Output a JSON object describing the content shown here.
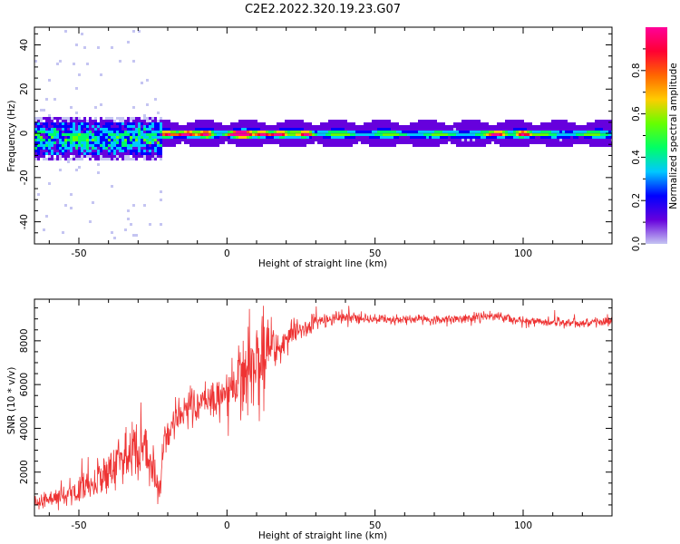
{
  "title": "C2E2.2022.320.19.23.G07",
  "chart_data": [
    {
      "type": "heatmap",
      "title": "C2E2.2022.320.19.23.G07",
      "xlabel": "Height of straight line (km)",
      "ylabel": "Frequency (Hz)",
      "xlim": [
        -65,
        130
      ],
      "ylim": [
        -50,
        48
      ],
      "xticks": [
        -50,
        0,
        50,
        100
      ],
      "yticks": [
        -40,
        -20,
        0,
        20,
        40
      ],
      "xtick_labels": [
        "-50",
        "0",
        "50",
        "100"
      ],
      "ytick_labels": [
        "-40",
        "-20",
        "0",
        "20",
        "40"
      ],
      "description_of_signal": "narrow band near 0 Hz; broad noisy spread (about -10 to 5 Hz) below -22 km; strong peaks near -20, -14, -7, 3, 27, 91, 100 km",
      "band": {
        "noisy_region": {
          "x_from": -65,
          "x_to": -22,
          "freq_low": -10,
          "freq_high": 5
        },
        "hotspots_x": [
          -20,
          -14,
          -7,
          3,
          6,
          12,
          17,
          27,
          91,
          100
        ]
      }
    },
    {
      "type": "line",
      "xlabel": "Height of straight line (km)",
      "ylabel": "SNR (10 * v/v)",
      "xlim": [
        -65,
        130
      ],
      "ylim": [
        0,
        9900
      ],
      "xticks": [
        -50,
        0,
        50,
        100
      ],
      "yticks": [
        2000,
        4000,
        6000,
        8000
      ],
      "xtick_labels": [
        "-50",
        "0",
        "50",
        "100"
      ],
      "ytick_labels": [
        "2000",
        "4000",
        "6000",
        "8000"
      ],
      "series": [
        {
          "name": "SNR",
          "color": "#ee3333",
          "x": [
            -65,
            -55,
            -45,
            -35,
            -28,
            -23,
            -21,
            -18,
            -12,
            -5,
            0,
            5,
            8,
            10,
            12,
            15,
            18,
            22,
            30,
            40,
            50,
            60,
            70,
            80,
            90,
            100,
            110,
            120,
            130
          ],
          "y": [
            600,
            900,
            1500,
            2600,
            3200,
            1200,
            3200,
            4300,
            4900,
            5400,
            5700,
            6200,
            7000,
            6000,
            7200,
            7700,
            7700,
            8300,
            8900,
            9100,
            9000,
            9000,
            8950,
            9000,
            9150,
            8900,
            8850,
            8850,
            8900
          ],
          "noise_amplitude": [
            300,
            400,
            700,
            1100,
            1300,
            600,
            700,
            700,
            800,
            900,
            1000,
            1300,
            2300,
            2600,
            2200,
            1100,
            700,
            500,
            300,
            220,
            200,
            200,
            200,
            200,
            200,
            200,
            200,
            200,
            200
          ]
        }
      ]
    }
  ],
  "colorbar": {
    "label": "Normalized spectral amplitude",
    "range": [
      0,
      1
    ],
    "tick_values": [
      0.0,
      0.2,
      0.4,
      0.6,
      0.8
    ],
    "tick_labels": [
      "0.0",
      "0.2",
      "0.4",
      "0.6",
      "0.8"
    ],
    "colors": [
      "#c5c5f2",
      "#6600dd",
      "#0000ff",
      "#00c8ff",
      "#00ff66",
      "#66ff00",
      "#ffcc00",
      "#ff6600",
      "#ff0033",
      "#ff0099"
    ]
  }
}
